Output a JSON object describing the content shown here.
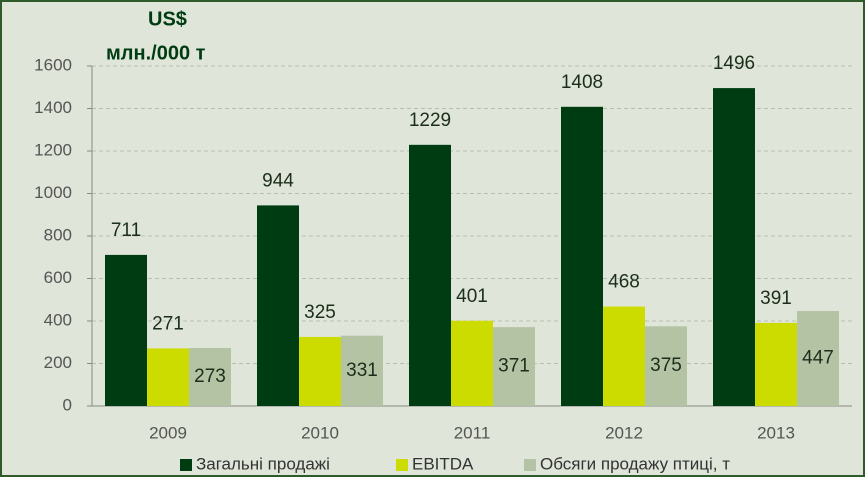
{
  "chart_data": {
    "type": "bar",
    "title": "US$",
    "subtitle": "млн./000 т",
    "categories": [
      "2009",
      "2010",
      "2011",
      "2012",
      "2013"
    ],
    "series": [
      {
        "name": "Загальні продажі",
        "color": "#003c12",
        "values": [
          711,
          944,
          1229,
          1408,
          1496
        ]
      },
      {
        "name": "EBITDA",
        "color": "#ccdc00",
        "values": [
          271,
          325,
          401,
          468,
          391
        ]
      },
      {
        "name": "Обсяги продажу птиці, т",
        "color": "#b3c3a3",
        "values": [
          273,
          331,
          371,
          375,
          447
        ]
      }
    ],
    "ylim": [
      0,
      1600
    ],
    "yticks": [
      0,
      200,
      400,
      600,
      800,
      1000,
      1200,
      1400,
      1600
    ],
    "grid": true,
    "legend": "bottom"
  }
}
